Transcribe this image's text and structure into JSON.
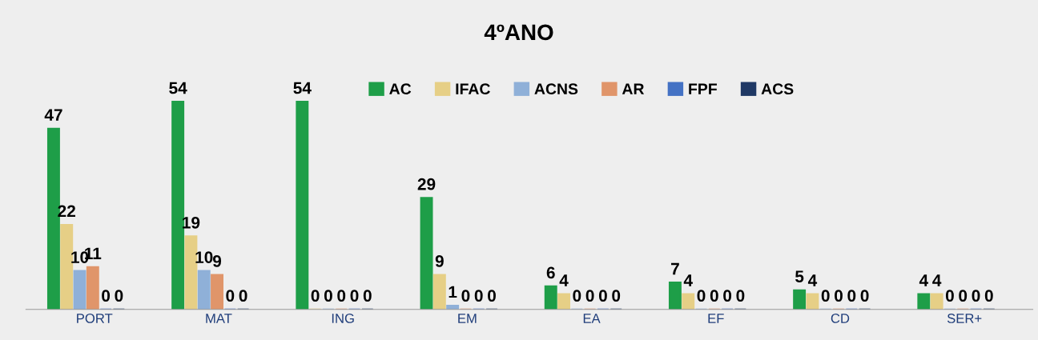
{
  "chart_data": {
    "type": "bar",
    "title": "4ºANO",
    "categories": [
      "PORT",
      "MAT",
      "ING",
      "EM",
      "EA",
      "EF",
      "CD",
      "SER+"
    ],
    "series": [
      {
        "name": "AC",
        "color": "#1e9e48",
        "values": [
          47,
          54,
          54,
          29,
          6,
          7,
          5,
          4
        ]
      },
      {
        "name": "IFAC",
        "color": "#e6cf86",
        "values": [
          22,
          19,
          0,
          9,
          4,
          4,
          4,
          4
        ]
      },
      {
        "name": "ACNS",
        "color": "#8fb0d8",
        "values": [
          10,
          10,
          0,
          1,
          0,
          0,
          0,
          0
        ]
      },
      {
        "name": "AR",
        "color": "#e0956a",
        "values": [
          11,
          9,
          0,
          0,
          0,
          0,
          0,
          0
        ]
      },
      {
        "name": "FPF",
        "color": "#4472c4",
        "values": [
          0,
          0,
          0,
          0,
          0,
          0,
          0,
          0
        ]
      },
      {
        "name": "ACS",
        "color": "#1f3864",
        "values": [
          0,
          0,
          0,
          0,
          0,
          0,
          0,
          0
        ]
      }
    ],
    "data_labels": true,
    "legend": "top",
    "grid": false,
    "tick_labels": "x"
  }
}
